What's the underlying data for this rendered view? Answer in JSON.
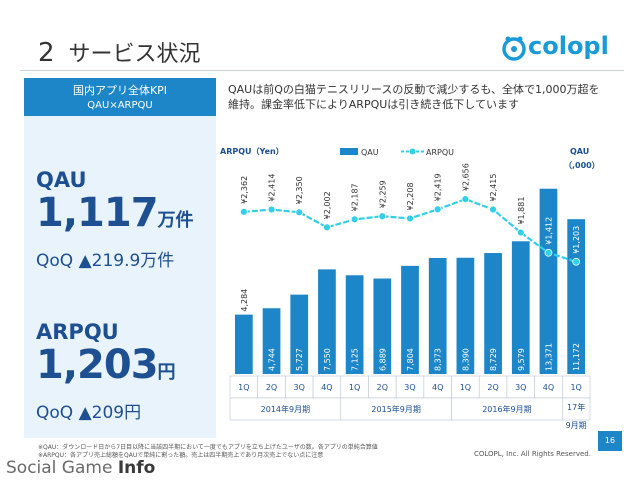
{
  "slide": {
    "number": "2",
    "title": "サービス状況"
  },
  "logo": {
    "text": "colopl"
  },
  "kpi": {
    "header_line1": "国内アプリ全体KPI",
    "header_line2": "QAU×ARPQU",
    "qau_label": "QAU",
    "qau_value": "1,117",
    "qau_unit": "万件",
    "qau_qoq": "QoQ ▲219.9万件",
    "arpqu_label": "ARPQU",
    "arpqu_value": "1,203",
    "arpqu_unit": "円",
    "arpqu_qoq": "QoQ ▲209円"
  },
  "description": {
    "line1": "QAUは前Qの白猫テニスリリースの反動で減少するも、全体で1,000万超を",
    "line2": "維持。課金率低下によりARPQUは引き続き低下しています"
  },
  "chart_data": {
    "type": "bar",
    "left_axis_title": "ARPQU（Yen）",
    "right_axis_title_line1": "QAU",
    "right_axis_title_line2": "（,000）",
    "legend": {
      "bar_label": "QAU",
      "line_label": "ARPQU",
      "placement": "top"
    },
    "categories": [
      "1Q",
      "2Q",
      "3Q",
      "4Q",
      "1Q",
      "2Q",
      "3Q",
      "4Q",
      "1Q",
      "2Q",
      "3Q",
      "4Q",
      "1Q"
    ],
    "groups": [
      {
        "label": "2014年9月期",
        "start": 0,
        "end": 3
      },
      {
        "label": "2015年9月期",
        "start": 4,
        "end": 7
      },
      {
        "label": "2016年9月期",
        "start": 8,
        "end": 11
      },
      {
        "label": "17年\n9月期",
        "start": 12,
        "end": 12
      }
    ],
    "series": [
      {
        "name": "QAU",
        "kind": "bar",
        "color": "#1c86c8",
        "values": [
          4284,
          4744,
          5727,
          7550,
          7125,
          6889,
          7804,
          8373,
          8390,
          8729,
          9579,
          13371,
          11172
        ],
        "labels": [
          "4,284",
          "4,744",
          "5,727",
          "7,550",
          "7,125",
          "6,889",
          "7,804",
          "8,373",
          "8,390",
          "8,729",
          "9,579",
          "13,371",
          "11,172"
        ]
      },
      {
        "name": "ARPQU",
        "kind": "line",
        "color": "#2fd0e8",
        "values": [
          2362,
          2414,
          2350,
          2002,
          2187,
          2259,
          2208,
          2419,
          2656,
          2415,
          1881,
          1412,
          1203
        ],
        "labels": [
          "¥2,362",
          "¥2,414",
          "¥2,350",
          "¥2,002",
          "¥2,187",
          "¥2,259",
          "¥2,208",
          "¥2,419",
          "¥2,656",
          "¥2,415",
          "¥1,881",
          "¥1,412",
          "¥1,203"
        ]
      }
    ],
    "qau_ylim": [
      0,
      14000
    ],
    "arpqu_ylim": [
      -1400,
      3100
    ]
  },
  "footnote": {
    "line1": "※QAU：ダウンロード日から7日目以降に当該四半期において一度でもアプリを立ち上げたユーザの数。各アプリの単純合算値",
    "line2": "※ARPQU：各アプリ売上総額をQAUで単純に割った額。売上は四半期売上であり月次売上でない点に注意"
  },
  "copyright": "COLOPL, Inc. All Rights Reserved.",
  "page_number": "16",
  "watermark": {
    "part1": "Social Game ",
    "part2": "Info"
  }
}
